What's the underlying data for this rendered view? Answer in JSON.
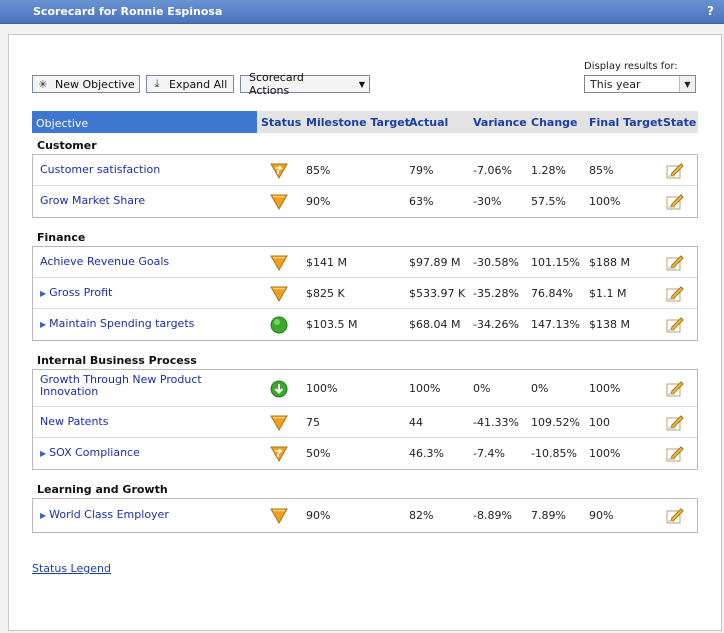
{
  "window": {
    "title": "Scorecard for Ronnie Espinosa",
    "help": "?"
  },
  "toolbar": {
    "new_objective": "New Objective",
    "expand_all": "Expand All",
    "scorecard_actions": "Scorecard Actions"
  },
  "display": {
    "label": "Display results for:",
    "value": "This year"
  },
  "columns": {
    "objective": "Objective",
    "status": "Status",
    "milestone": "Milestone Target",
    "actual": "Actual",
    "variance": "Variance",
    "change": "Change",
    "final": "Final Target",
    "state": "State"
  },
  "groups": [
    {
      "title": "Customer",
      "rows": [
        {
          "objective": "Customer satisfaction",
          "expandable": false,
          "status": "warning-arrow-icon",
          "milestone": "85%",
          "actual": "79%",
          "variance": "-7.06%",
          "change": "1.28%",
          "final": "85%"
        },
        {
          "objective": "Grow Market Share",
          "expandable": false,
          "status": "warning-down-icon",
          "milestone": "90%",
          "actual": "63%",
          "variance": "-30%",
          "change": "57.5%",
          "final": "100%"
        }
      ]
    },
    {
      "title": "Finance",
      "rows": [
        {
          "objective": "Achieve Revenue Goals",
          "expandable": false,
          "status": "warning-down-icon",
          "milestone": "$141 M",
          "actual": "$97.89 M",
          "variance": "-30.58%",
          "change": "101.15%",
          "final": "$188 M"
        },
        {
          "objective": "Gross Profit",
          "expandable": true,
          "status": "warning-down-icon",
          "milestone": "$825 K",
          "actual": "$533.97 K",
          "variance": "-35.28%",
          "change": "76.84%",
          "final": "$1.1 M"
        },
        {
          "objective": "Maintain Spending targets",
          "expandable": true,
          "status": "on-track-circle-icon",
          "milestone": "$103.5 M",
          "actual": "$68.04 M",
          "variance": "-34.26%",
          "change": "147.13%",
          "final": "$138 M"
        }
      ]
    },
    {
      "title": "Internal Business Process",
      "rows": [
        {
          "objective": "Growth Through New Product",
          "objective_line2": "Innovation",
          "expandable": false,
          "status": "completed-down-arrow-icon",
          "milestone": "100%",
          "actual": "100%",
          "variance": "0%",
          "change": "0%",
          "final": "100%"
        },
        {
          "objective": "New Patents",
          "expandable": false,
          "status": "warning-down-icon",
          "milestone": "75",
          "actual": "44",
          "variance": "-41.33%",
          "change": "109.52%",
          "final": "100"
        },
        {
          "objective": "SOX Compliance",
          "expandable": true,
          "status": "warning-arrow-icon",
          "milestone": "50%",
          "actual": "46.3%",
          "variance": "-7.4%",
          "change": "-10.85%",
          "final": "100%"
        }
      ]
    },
    {
      "title": "Learning and Growth",
      "rows": [
        {
          "objective": "World Class Employer",
          "expandable": true,
          "status": "warning-down-icon",
          "milestone": "90%",
          "actual": "82%",
          "variance": "-8.89%",
          "change": "7.89%",
          "final": "90%"
        }
      ]
    }
  ],
  "footer": {
    "legend": "Status Legend"
  },
  "colors": {
    "title_bar": "#4a72bd",
    "header_active": "#3f76d2",
    "link": "#1a2fa8",
    "warning": "#f0a020",
    "ok": "#3aa82a"
  }
}
